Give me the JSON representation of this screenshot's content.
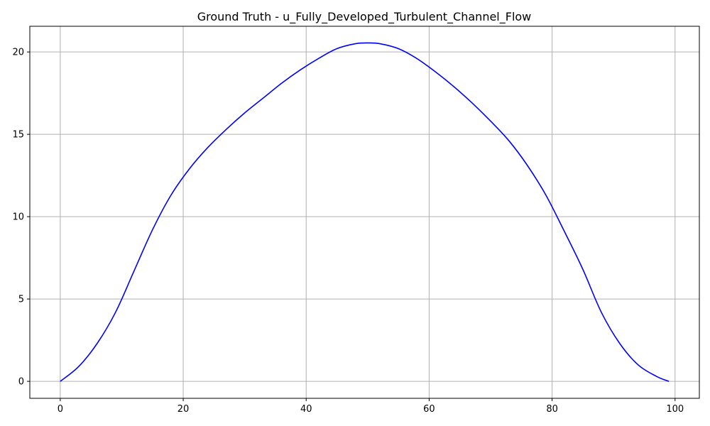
{
  "chart_data": {
    "type": "line",
    "title": "Ground Truth - u_Fully_Developed_Turbulent_Channel_Flow",
    "xlabel": "",
    "ylabel": "",
    "xlim": [
      -4.95,
      103.95
    ],
    "ylim": [
      -1.03,
      21.56
    ],
    "xticks": [
      0,
      20,
      40,
      60,
      80,
      100
    ],
    "yticks": [
      0,
      5,
      10,
      15,
      20
    ],
    "xtick_labels": [
      "0",
      "20",
      "40",
      "60",
      "80",
      "100"
    ],
    "ytick_labels": [
      "0",
      "5",
      "10",
      "15",
      "20"
    ],
    "grid": true,
    "series": [
      {
        "color": "#0000ff",
        "x": [
          0,
          3,
          6,
          9,
          12,
          15,
          18,
          21,
          24,
          27,
          30,
          33,
          36,
          39,
          42,
          45,
          48,
          50,
          52,
          55,
          58,
          61,
          64,
          67,
          70,
          73,
          76,
          79,
          82,
          85,
          88,
          91,
          94,
          97,
          99
        ],
        "y": [
          0,
          0.9,
          2.3,
          4.2,
          6.7,
          9.2,
          11.3,
          12.9,
          14.2,
          15.3,
          16.3,
          17.2,
          18.1,
          18.9,
          19.6,
          20.2,
          20.5,
          20.55,
          20.5,
          20.2,
          19.6,
          18.8,
          17.9,
          16.9,
          15.8,
          14.6,
          13.1,
          11.3,
          9.1,
          6.8,
          4.2,
          2.3,
          1.0,
          0.3,
          0
        ]
      }
    ]
  }
}
